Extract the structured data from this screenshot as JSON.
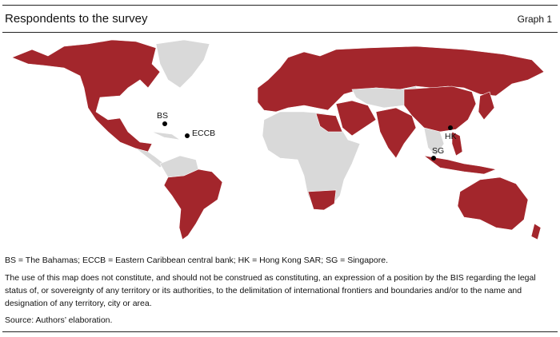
{
  "header": {
    "title": "Respondents to the survey",
    "graph_label": "Graph 1"
  },
  "map": {
    "labels": [
      "BS",
      "ECCB",
      "HK",
      "SG"
    ]
  },
  "notes": {
    "abbreviations": "BS = The Bahamas; ECCB = Eastern Caribbean central bank; HK = Hong Kong SAR; SG = Singapore.",
    "disclaimer": "The use of this map does not constitute, and should not be construed as constituting, an expression of a position by the BIS regarding the legal status of, or sovereignty of any territory or its authorities, to the delimitation of international frontiers and boundaries and/or to the name and designation of any territory, city or area.",
    "source": "Source: Authors’ elaboration."
  }
}
